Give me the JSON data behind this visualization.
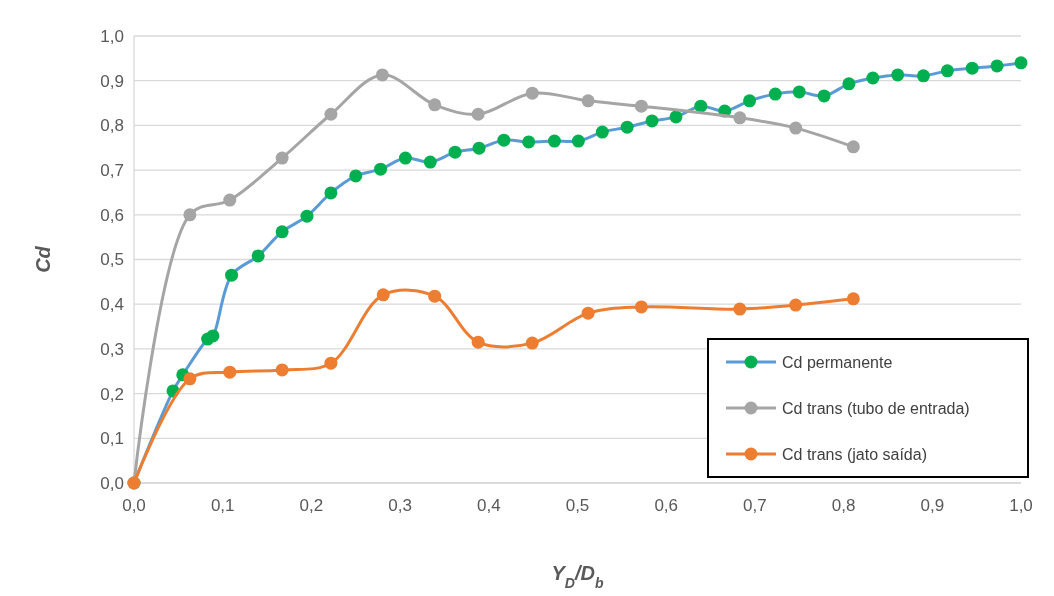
{
  "chart_data": {
    "type": "line",
    "xlabel": "Y$_{D}$/D$_{b}$",
    "ylabel": "Cd",
    "xlim": [
      0,
      1
    ],
    "ylim": [
      0,
      1
    ],
    "xticks": [
      {
        "value": 0,
        "label": "0,0"
      },
      {
        "value": 0.1,
        "label": "0,1"
      },
      {
        "value": 0.2,
        "label": "0,2"
      },
      {
        "value": 0.3,
        "label": "0,3"
      },
      {
        "value": 0.4,
        "label": "0,4"
      },
      {
        "value": 0.5,
        "label": "0,5"
      },
      {
        "value": 0.6,
        "label": "0,6"
      },
      {
        "value": 0.7,
        "label": "0,7"
      },
      {
        "value": 0.8,
        "label": "0,8"
      },
      {
        "value": 0.9,
        "label": "0,9"
      },
      {
        "value": 1,
        "label": "1,0"
      }
    ],
    "yticks": [
      {
        "value": 0,
        "label": "0,0"
      },
      {
        "value": 0.1,
        "label": "0,1"
      },
      {
        "value": 0.2,
        "label": "0,2"
      },
      {
        "value": 0.3,
        "label": "0,3"
      },
      {
        "value": 0.4,
        "label": "0,4"
      },
      {
        "value": 0.5,
        "label": "0,5"
      },
      {
        "value": 0.6,
        "label": "0,6"
      },
      {
        "value": 0.7,
        "label": "0,7"
      },
      {
        "value": 0.8,
        "label": "0,8"
      },
      {
        "value": 0.9,
        "label": "0,9"
      },
      {
        "value": 1,
        "label": "1,0"
      }
    ],
    "grid": "y",
    "legend": "bottom right",
    "marker": "circle",
    "line_style": "solid",
    "series": [
      {
        "name": "Cd permanente",
        "color": "#5b9bd5",
        "colors": [
          "#00b050",
          "#00b050",
          "#00b050",
          "#00b050",
          "#00b050",
          "#00b050",
          "#00b050",
          "#00b050",
          "#00b050",
          "#00b050",
          "#00b050",
          "#00b050",
          "#00b050",
          "#00b050",
          "#00b050",
          "#00b050",
          "#00b050",
          "#00b050",
          "#00b050",
          "#00b050",
          "#00b050",
          "#00b050",
          "#00b050",
          "#00b050",
          "#00b050",
          "#00b050",
          "#00b050",
          "#00b050",
          "#00b050",
          "#00b050",
          "#00b050",
          "#00b050",
          "#00b050",
          "#00b050",
          "#00b050",
          "#00b050",
          "#00b050",
          "#00b050"
        ],
        "x": [
          0,
          0.044,
          0.055,
          0.083,
          0.089,
          0.11,
          0.14,
          0.167,
          0.195,
          0.222,
          0.25,
          0.278,
          0.306,
          0.334,
          0.362,
          0.389,
          0.417,
          0.445,
          0.474,
          0.501,
          0.528,
          0.556,
          0.584,
          0.611,
          0.639,
          0.666,
          0.694,
          0.723,
          0.75,
          0.778,
          0.806,
          0.833,
          0.861,
          0.89,
          0.917,
          0.945,
          0.973,
          1.0
        ],
        "values": [
          0,
          0.206,
          0.242,
          0.322,
          0.329,
          0.465,
          0.508,
          0.562,
          0.597,
          0.649,
          0.687,
          0.702,
          0.727,
          0.718,
          0.74,
          0.749,
          0.767,
          0.763,
          0.765,
          0.765,
          0.785,
          0.796,
          0.81,
          0.819,
          0.843,
          0.832,
          0.855,
          0.87,
          0.875,
          0.866,
          0.893,
          0.906,
          0.913,
          0.911,
          0.922,
          0.928,
          0.933,
          0.94
        ]
      },
      {
        "name": "Cd trans (tubo de entrada)",
        "color": "#a5a5a5",
        "x": [
          0,
          0.063,
          0.108,
          0.167,
          0.222,
          0.28,
          0.339,
          0.388,
          0.449,
          0.512,
          0.572,
          0.683,
          0.746,
          0.811
        ],
        "values": [
          0,
          0.6,
          0.633,
          0.727,
          0.825,
          0.913,
          0.846,
          0.825,
          0.872,
          0.855,
          0.843,
          0.817,
          0.794,
          0.752
        ]
      },
      {
        "name": "Cd trans (jato saída)",
        "color": "#ed7d31",
        "x": [
          0,
          0.063,
          0.108,
          0.167,
          0.222,
          0.281,
          0.339,
          0.388,
          0.449,
          0.512,
          0.572,
          0.683,
          0.746,
          0.811
        ],
        "values": [
          0,
          0.233,
          0.248,
          0.253,
          0.268,
          0.421,
          0.418,
          0.315,
          0.313,
          0.38,
          0.394,
          0.389,
          0.398,
          0.412
        ]
      }
    ]
  }
}
